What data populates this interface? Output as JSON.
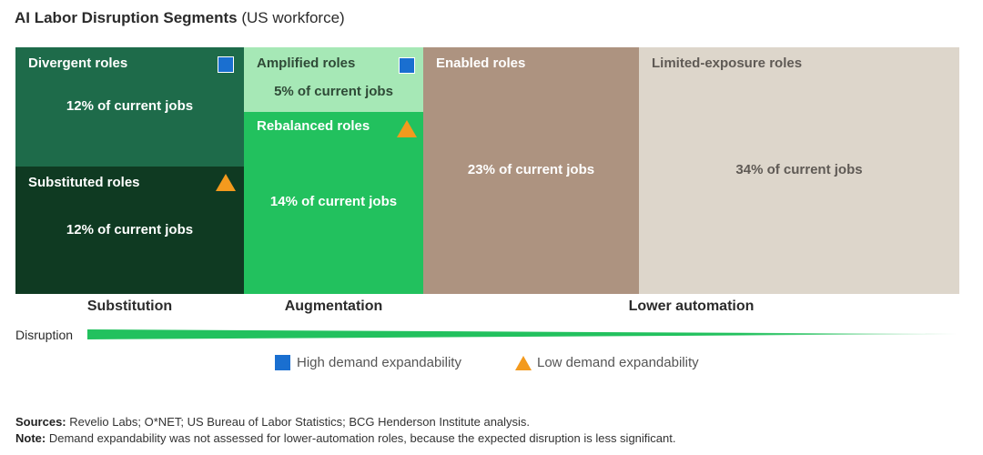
{
  "title": {
    "bold": "AI Labor Disruption Segments",
    "rest": " (US workforce)"
  },
  "chart_data": {
    "type": "treemap",
    "title": "AI Labor Disruption Segments (US workforce)",
    "unit": "% of current jobs",
    "cells": [
      {
        "name": "Divergent roles",
        "value": 12,
        "label": "12% of current jobs",
        "segment": "Substitution",
        "demand_expandability": "high",
        "color": "#1e6b4a"
      },
      {
        "name": "Substituted roles",
        "value": 12,
        "label": "12% of current jobs",
        "segment": "Substitution",
        "demand_expandability": "low",
        "color": "#0f3a22"
      },
      {
        "name": "Amplified roles",
        "value": 5,
        "label": "5% of current jobs",
        "segment": "Augmentation",
        "demand_expandability": "high",
        "color": "#a6e8b6"
      },
      {
        "name": "Rebalanced roles",
        "value": 14,
        "label": "14% of current jobs",
        "segment": "Augmentation",
        "demand_expandability": "low",
        "color": "#22c15e"
      },
      {
        "name": "Enabled roles",
        "value": 23,
        "label": "23% of current jobs",
        "segment": "Lower automation",
        "demand_expandability": null,
        "color": "#ad9380"
      },
      {
        "name": "Limited-exposure roles",
        "value": 34,
        "label": "34% of current jobs",
        "segment": "Lower automation",
        "demand_expandability": null,
        "color": "#ddd6cb"
      }
    ],
    "segments": [
      "Substitution",
      "Augmentation",
      "Lower automation"
    ],
    "disruption_axis": {
      "label": "Disruption",
      "direction": "decreasing left to right"
    },
    "legend": [
      {
        "marker": "square",
        "color": "#1a6fd0",
        "label": "High demand expandability"
      },
      {
        "marker": "triangle",
        "color": "#f39a1e",
        "label": "Low demand expandability"
      }
    ]
  },
  "footnotes": {
    "sources_label": "Sources:",
    "sources_text": " Revelio Labs; O*NET; US Bureau of Labor Statistics; BCG Henderson Institute analysis.",
    "note_label": "Note:",
    "note_text": " Demand expandability was not assessed for lower-automation roles, because the expected disruption is less significant."
  }
}
